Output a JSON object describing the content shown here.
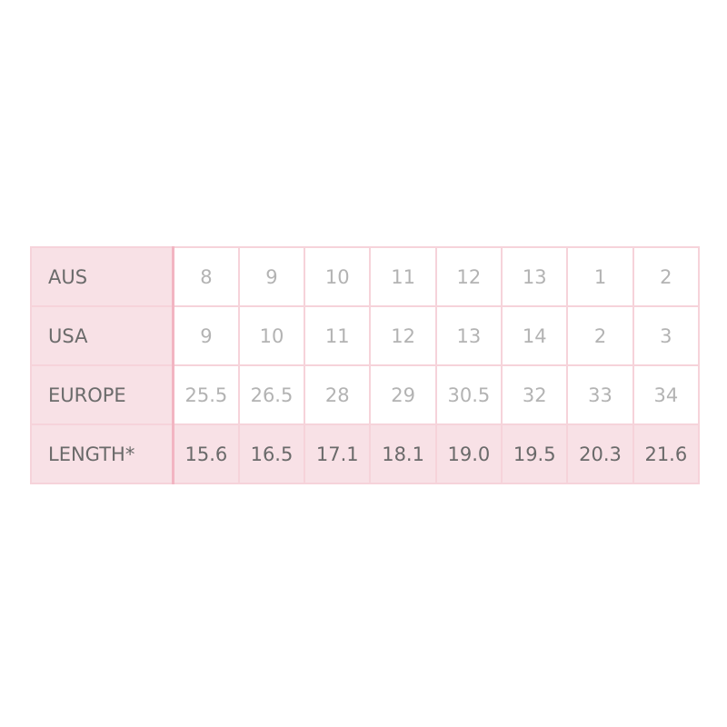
{
  "size_chart": {
    "rows": [
      {
        "label": "AUS",
        "values": [
          "8",
          "9",
          "10",
          "11",
          "12",
          "13",
          "1",
          "2"
        ]
      },
      {
        "label": "USA",
        "values": [
          "9",
          "10",
          "11",
          "12",
          "13",
          "14",
          "2",
          "3"
        ]
      },
      {
        "label": "EUROPE",
        "values": [
          "25.5",
          "26.5",
          "28",
          "29",
          "30.5",
          "32",
          "33",
          "34"
        ]
      },
      {
        "label": "LENGTH*",
        "values": [
          "15.6",
          "16.5",
          "17.1",
          "18.1",
          "19.0",
          "19.5",
          "20.3",
          "21.6"
        ]
      }
    ]
  },
  "colors": {
    "header_bg": "#f8e1e6",
    "border": "#f6d3da",
    "accent_border": "#f2b5c2"
  }
}
